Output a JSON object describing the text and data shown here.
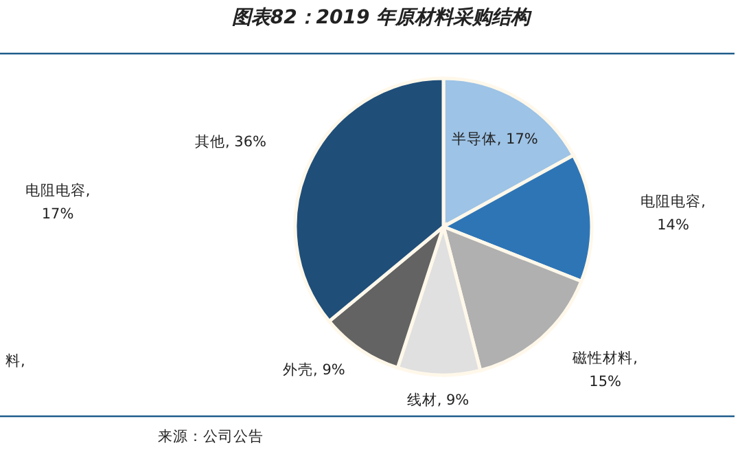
{
  "chart_data": {
    "type": "pie",
    "title": "图表82：2019 年原材料采购结构",
    "values": [
      17,
      14,
      15,
      9,
      9,
      36
    ],
    "colors": [
      "#9dc3e6",
      "#2e75b6",
      "#b0b0b0",
      "#e0e0e0",
      "#636363",
      "#1f4e79"
    ],
    "value_labels": [
      "半导体, 17%",
      "电阻电容, 14%",
      "磁性材料, 15%",
      "线材, 9%",
      "外壳, 9%",
      "其他, 36%"
    ],
    "annotations": [
      "电阻电容, 17%",
      "料,",
      "来源：公司公告"
    ]
  }
}
